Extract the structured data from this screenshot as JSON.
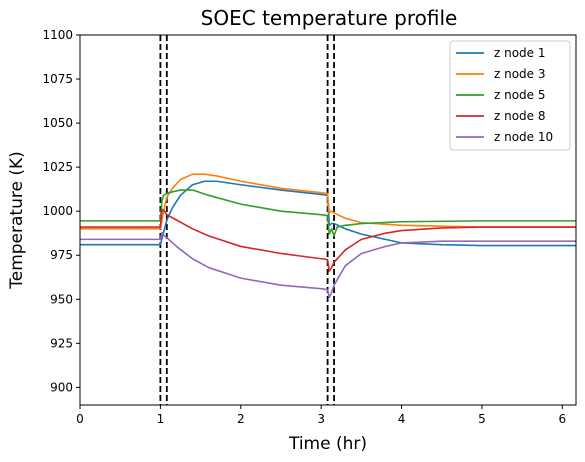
{
  "chart_data": {
    "type": "line",
    "title": "SOEC temperature profile",
    "xlabel": "Time (hr)",
    "ylabel": "Temperature (K)",
    "xlim": [
      0,
      6.17
    ],
    "ylim": [
      890,
      1100
    ],
    "xticks": [
      0,
      1,
      2,
      3,
      4,
      5,
      6
    ],
    "yticks": [
      900,
      925,
      950,
      975,
      1000,
      1025,
      1050,
      1075,
      1100
    ],
    "grid": false,
    "legend_position": "top-right",
    "vertical_lines": [
      1.0,
      1.08,
      3.08,
      3.16
    ],
    "vertical_line_style": "dashed-black",
    "series": [
      {
        "name": "z node 1",
        "color": "#1f77b4",
        "x": [
          0,
          1.0,
          1.04,
          1.08,
          1.15,
          1.25,
          1.4,
          1.55,
          1.7,
          2.0,
          2.5,
          3.0,
          3.08,
          3.1,
          3.13,
          3.16,
          3.3,
          3.5,
          4.0,
          4.5,
          5.0,
          6.17
        ],
        "y": [
          981,
          981,
          988,
          995,
          1002,
          1009,
          1015,
          1017,
          1017,
          1015,
          1012,
          1009.5,
          1009,
          992,
          993,
          993,
          990,
          987,
          982,
          981,
          980.5,
          980.5
        ]
      },
      {
        "name": "z node 3",
        "color": "#ff7f0e",
        "x": [
          0,
          1.0,
          1.04,
          1.08,
          1.15,
          1.25,
          1.4,
          1.55,
          1.7,
          2.0,
          2.5,
          3.0,
          3.08,
          3.1,
          3.13,
          3.16,
          3.3,
          3.5,
          4.0,
          4.5,
          5.0,
          6.17
        ],
        "y": [
          990,
          990,
          1000,
          1008,
          1013,
          1018,
          1021,
          1021,
          1020,
          1017,
          1013,
          1010.5,
          1010,
          999,
          1000,
          999,
          996,
          993.5,
          992,
          991.5,
          991,
          991
        ]
      },
      {
        "name": "z node 5",
        "color": "#2ca02c",
        "x": [
          0,
          1.0,
          1.02,
          1.04,
          1.08,
          1.15,
          1.25,
          1.4,
          1.6,
          2.0,
          2.5,
          3.0,
          3.08,
          3.1,
          3.13,
          3.16,
          3.2,
          3.3,
          3.5,
          4.0,
          5.0,
          6.17
        ],
        "y": [
          994.5,
          994.5,
          1006,
          1009,
          1010,
          1011,
          1012,
          1012,
          1009,
          1004,
          1000,
          998,
          997.5,
          987,
          990,
          986,
          991,
          992,
          993,
          994,
          994.5,
          994.5
        ]
      },
      {
        "name": "z node 8",
        "color": "#d62728",
        "x": [
          0,
          1.0,
          1.02,
          1.05,
          1.08,
          1.2,
          1.4,
          1.6,
          2.0,
          2.5,
          3.0,
          3.08,
          3.1,
          3.13,
          3.16,
          3.3,
          3.5,
          3.8,
          4.0,
          4.5,
          5.0,
          6.17
        ],
        "y": [
          991,
          991,
          1001,
          1000,
          998,
          995,
          990,
          986,
          980,
          976,
          973,
          972.5,
          966,
          968,
          971,
          978,
          984,
          987.5,
          989,
          990.5,
          991,
          991
        ]
      },
      {
        "name": "z node 10",
        "color": "#9467bd",
        "x": [
          0,
          1.0,
          1.02,
          1.05,
          1.08,
          1.2,
          1.4,
          1.6,
          2.0,
          2.5,
          3.0,
          3.08,
          3.1,
          3.13,
          3.16,
          3.3,
          3.5,
          3.8,
          4.0,
          4.5,
          5.0,
          6.17
        ],
        "y": [
          984,
          984,
          988,
          986,
          985,
          980,
          973,
          968,
          962,
          958,
          956,
          955.5,
          951,
          954,
          958,
          969,
          976,
          980,
          982,
          983,
          983,
          983
        ]
      }
    ]
  }
}
